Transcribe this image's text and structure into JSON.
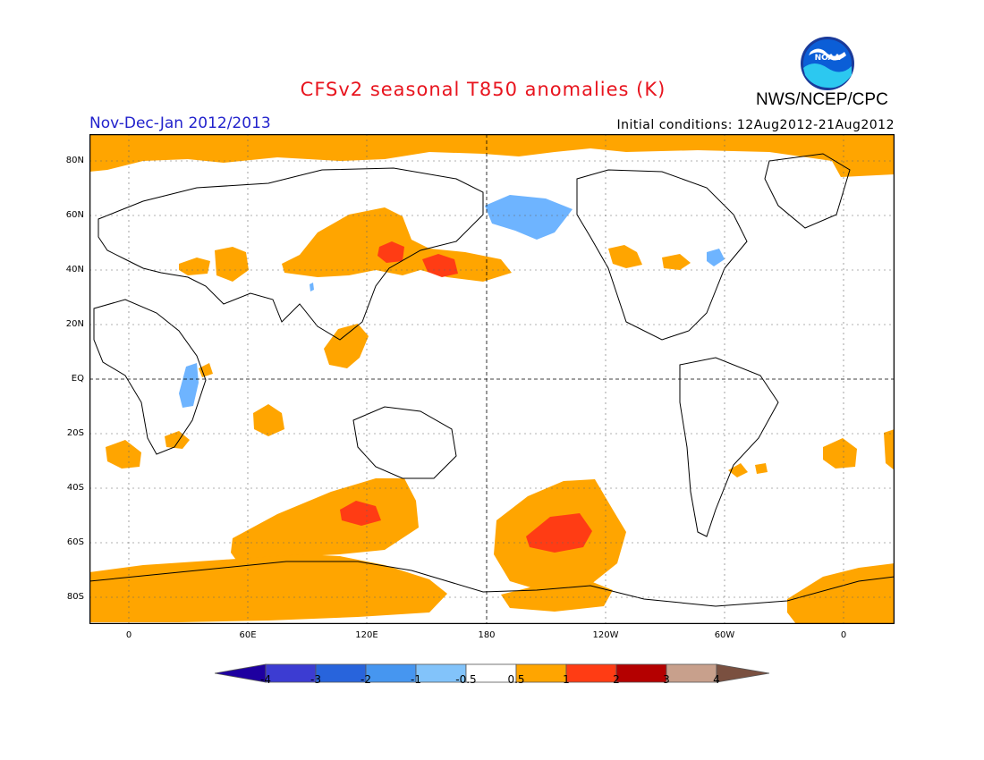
{
  "header": {
    "title": "CFSv2 seasonal T850 anomalies (K)",
    "agency": "NWS/NCEP/CPC",
    "logo_text": "NOAA",
    "season": "Nov-Dec-Jan 2012/2013",
    "initial_conditions": "Initial conditions: 12Aug2012-21Aug2012"
  },
  "map": {
    "lat_labels": [
      "80N",
      "60N",
      "40N",
      "20N",
      "EQ",
      "20S",
      "40S",
      "60S",
      "80S"
    ],
    "lon_labels": [
      "0",
      "60E",
      "120E",
      "180",
      "120W",
      "60W",
      "0"
    ],
    "colors": {
      "land_outline": "#000000",
      "ocean": "#ffffff",
      "warm_0_5_to_1": "#ffa500",
      "warm_1_to_2": "#ff3c14",
      "cool_minus1_to_minus0_5": "#6eb4ff"
    }
  },
  "colorbar": {
    "tick_labels": [
      "-4",
      "-3",
      "-2",
      "-1",
      "-0.5",
      "0.5",
      "1",
      "2",
      "3",
      "4"
    ],
    "colors": [
      "#1e00a0",
      "#3c3cd2",
      "#2864dc",
      "#4696f0",
      "#82c3fa",
      "#ffffff",
      "#ffa500",
      "#ff3c14",
      "#b40000",
      "#c8a08c",
      "#7a5040"
    ]
  }
}
